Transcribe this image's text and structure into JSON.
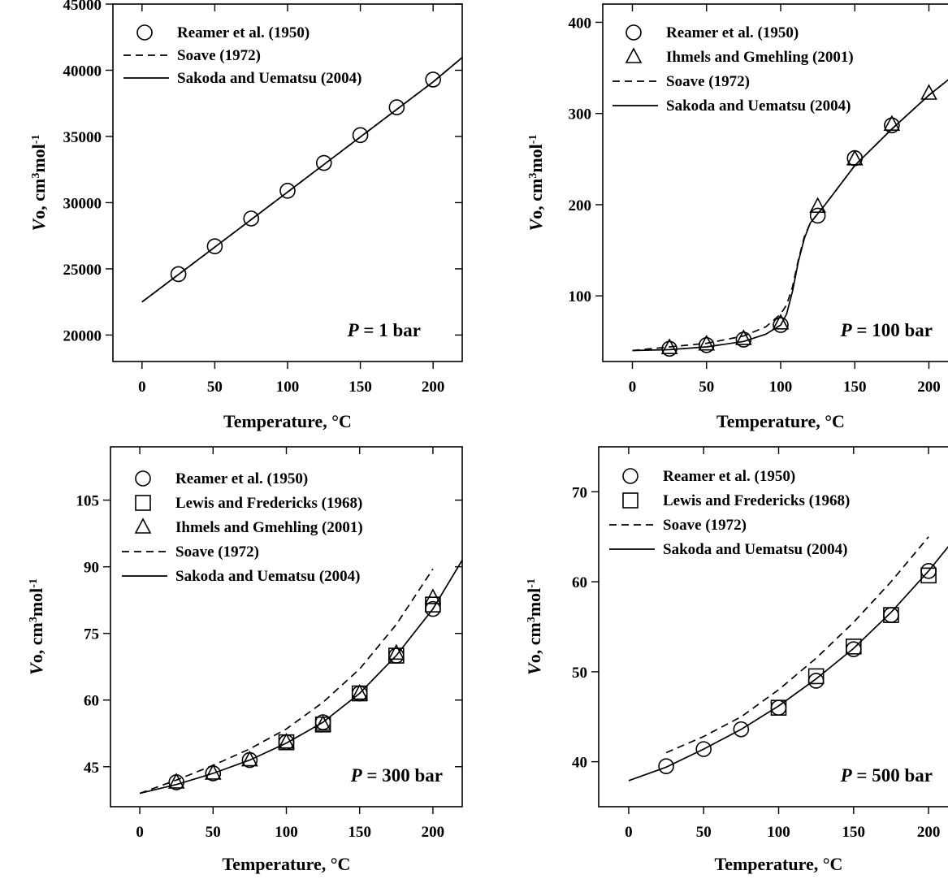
{
  "chart_data": [
    {
      "type": "line",
      "annotation": {
        "prefix": "P",
        "text": " = 1 bar"
      },
      "xlabel": "Temperature, °C",
      "ylabel": "V°, cm³mol⁻¹",
      "xlim": [
        -20,
        220
      ],
      "ylim": [
        18000,
        45000
      ],
      "xticks": [
        0,
        50,
        100,
        150,
        200
      ],
      "yticks": [
        20000,
        25000,
        30000,
        35000,
        40000,
        45000
      ],
      "legend_position": "top-left",
      "series": [
        {
          "name": "Reamer et al. (1950)",
          "kind": "marker",
          "marker": "circle",
          "x": [
            25,
            50,
            75,
            100,
            125,
            150,
            175,
            200
          ],
          "y": [
            24600,
            26700,
            28800,
            30900,
            33000,
            35100,
            37200,
            39300
          ]
        },
        {
          "name": "Soave (1972)",
          "kind": "line",
          "style": "dashed",
          "x": [
            0,
            50,
            100,
            150,
            200,
            220
          ],
          "y": [
            22500,
            26640,
            30800,
            34960,
            39120,
            40960
          ]
        },
        {
          "name": "Sakoda and Uematsu (2004)",
          "kind": "line",
          "style": "solid",
          "x": [
            0,
            50,
            100,
            150,
            200,
            220
          ],
          "y": [
            22500,
            26640,
            30800,
            34960,
            39120,
            40960
          ]
        }
      ]
    },
    {
      "type": "line",
      "annotation": {
        "prefix": "P",
        "text": " = 100 bar"
      },
      "xlabel": "Temperature, °C",
      "ylabel": "V°, cm³mol⁻¹",
      "xlim": [
        -20,
        220
      ],
      "ylim": [
        28,
        420
      ],
      "xticks": [
        0,
        50,
        100,
        150,
        200
      ],
      "yticks": [
        100,
        200,
        300,
        400
      ],
      "legend_position": "top-left",
      "series": [
        {
          "name": "Reamer et al. (1950)",
          "kind": "marker",
          "marker": "circle",
          "x": [
            25,
            50,
            75,
            100,
            125,
            150,
            175
          ],
          "y": [
            42,
            46,
            52,
            68,
            188,
            251,
            287
          ]
        },
        {
          "name": "Ihmels and Gmehling (2001)",
          "kind": "marker",
          "marker": "triangle",
          "x": [
            25,
            50,
            75,
            100,
            125,
            150,
            175,
            200
          ],
          "y": [
            43,
            47,
            53,
            70,
            198,
            250,
            288,
            322
          ]
        },
        {
          "name": "Soave (1972)",
          "kind": "line",
          "style": "dashed",
          "x": [
            0,
            25,
            50,
            75,
            90,
            100,
            104,
            108,
            112,
            116,
            120,
            130,
            150,
            175,
            200,
            220
          ],
          "y": [
            40,
            44,
            48,
            56,
            66,
            80,
            90,
            110,
            140,
            165,
            180,
            200,
            243,
            283,
            320,
            346
          ]
        },
        {
          "name": "Sakoda and Uematsu (2004)",
          "kind": "line",
          "style": "solid",
          "x": [
            0,
            25,
            50,
            75,
            90,
            100,
            104,
            108,
            112,
            116,
            120,
            130,
            150,
            175,
            200,
            220
          ],
          "y": [
            40,
            41,
            44,
            50,
            58,
            68,
            80,
            105,
            138,
            163,
            180,
            200,
            243,
            283,
            320,
            346
          ]
        }
      ]
    },
    {
      "type": "line",
      "annotation": {
        "prefix": "P",
        "text": " = 300 bar"
      },
      "xlabel": "Temperature, °C",
      "ylabel": "V°, cm³mol⁻¹",
      "xlim": [
        -20,
        220
      ],
      "ylim": [
        36,
        117
      ],
      "xticks": [
        0,
        50,
        100,
        150,
        200
      ],
      "yticks": [
        45,
        60,
        75,
        90,
        105
      ],
      "legend_position": "top-left",
      "series": [
        {
          "name": "Reamer et al. (1950)",
          "kind": "marker",
          "marker": "circle",
          "x": [
            25,
            50,
            75,
            100,
            125,
            150,
            175,
            200
          ],
          "y": [
            41.5,
            43.5,
            46.5,
            50.5,
            55,
            61.5,
            70,
            80.5
          ]
        },
        {
          "name": "Lewis and Fredericks (1968)",
          "kind": "marker",
          "marker": "square",
          "x": [
            100,
            125,
            150,
            175,
            200
          ],
          "y": [
            50.5,
            54.5,
            61.5,
            70,
            81.5
          ]
        },
        {
          "name": "Ihmels and Gmehling (2001)",
          "kind": "marker",
          "marker": "triangle",
          "x": [
            25,
            50,
            75,
            100,
            125,
            150,
            175,
            200
          ],
          "y": [
            41.5,
            43.5,
            46.5,
            50.5,
            54.5,
            61.5,
            70.5,
            83
          ]
        },
        {
          "name": "Soave (1972)",
          "kind": "line",
          "style": "dashed",
          "x": [
            0,
            25,
            50,
            75,
            100,
            125,
            150,
            175,
            200
          ],
          "y": [
            39,
            42,
            45.3,
            49,
            53.5,
            59.5,
            67,
            77,
            89.5
          ]
        },
        {
          "name": "Sakoda and Uematsu (2004)",
          "kind": "line",
          "style": "solid",
          "x": [
            0,
            25,
            50,
            75,
            100,
            125,
            150,
            175,
            200,
            220
          ],
          "y": [
            39,
            41,
            43.5,
            46.5,
            50.3,
            55,
            61.5,
            70,
            80.5,
            91.5
          ]
        }
      ]
    },
    {
      "type": "line",
      "annotation": {
        "prefix": "P",
        "text": " = 500 bar"
      },
      "xlabel": "Temperature, °C",
      "ylabel": "V°, cm³mol⁻¹",
      "xlim": [
        -20,
        220
      ],
      "ylim": [
        35,
        75
      ],
      "xticks": [
        0,
        50,
        100,
        150,
        200
      ],
      "yticks": [
        40,
        50,
        60,
        70
      ],
      "legend_position": "top-left",
      "series": [
        {
          "name": "Reamer et al. (1950)",
          "kind": "marker",
          "marker": "circle",
          "x": [
            25,
            50,
            75,
            100,
            125,
            150,
            175,
            200
          ],
          "y": [
            39.5,
            41.4,
            43.6,
            46,
            49,
            52.5,
            56.3,
            61.2
          ]
        },
        {
          "name": "Lewis and Fredericks (1968)",
          "kind": "marker",
          "marker": "square",
          "x": [
            100,
            125,
            150,
            175,
            200
          ],
          "y": [
            46,
            49.5,
            52.8,
            56.3,
            60.7
          ]
        },
        {
          "name": "Soave (1972)",
          "kind": "line",
          "style": "dashed",
          "x": [
            25,
            50,
            75,
            100,
            125,
            150,
            175,
            200
          ],
          "y": [
            41,
            42.8,
            45,
            48,
            51.5,
            55.5,
            60,
            65
          ]
        },
        {
          "name": "Sakoda and Uematsu (2004)",
          "kind": "line",
          "style": "solid",
          "x": [
            0,
            25,
            50,
            75,
            100,
            125,
            150,
            175,
            200,
            220
          ],
          "y": [
            37.9,
            39.4,
            41.4,
            43.6,
            46.2,
            49.2,
            52.6,
            56.6,
            61.2,
            65.3
          ]
        }
      ]
    }
  ]
}
